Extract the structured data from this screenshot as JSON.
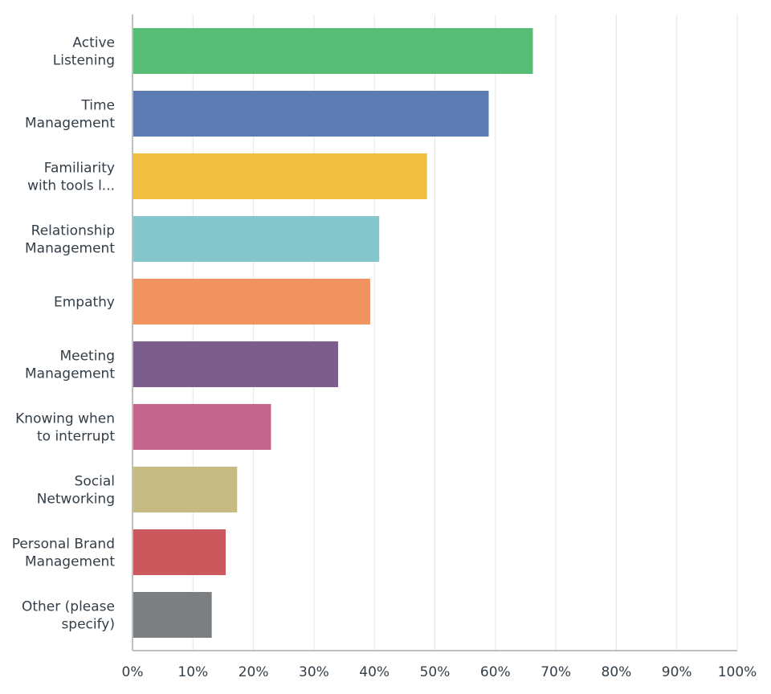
{
  "chart_data": {
    "type": "bar",
    "orientation": "horizontal",
    "title": "",
    "xlabel": "",
    "ylabel": "",
    "xlim": [
      0,
      100
    ],
    "grid": true,
    "ticks": [
      "0%",
      "10%",
      "20%",
      "30%",
      "40%",
      "50%",
      "60%",
      "70%",
      "80%",
      "90%",
      "100%"
    ],
    "tick_values": [
      0,
      10,
      20,
      30,
      40,
      50,
      60,
      70,
      80,
      90,
      100
    ],
    "categories": [
      [
        "Active",
        "Listening"
      ],
      [
        "Time",
        "Management"
      ],
      [
        "Familiarity",
        "with tools l..."
      ],
      [
        "Relationship",
        "Management"
      ],
      [
        "Empathy"
      ],
      [
        "Meeting",
        "Management"
      ],
      [
        "Knowing when",
        "to interrupt"
      ],
      [
        "Social",
        "Networking"
      ],
      [
        "Personal Brand",
        "Management"
      ],
      [
        "Other (please",
        "specify)"
      ]
    ],
    "values": [
      66.2,
      58.9,
      48.7,
      40.8,
      39.3,
      34.0,
      22.9,
      17.3,
      15.4,
      13.1
    ],
    "colors": [
      "#57bd76",
      "#5b7bb2",
      "#f0bf41",
      "#84c6cb",
      "#f0935e",
      "#7b5e8b",
      "#c4658d",
      "#c6bb83",
      "#cb585d",
      "#7b7f82"
    ]
  }
}
